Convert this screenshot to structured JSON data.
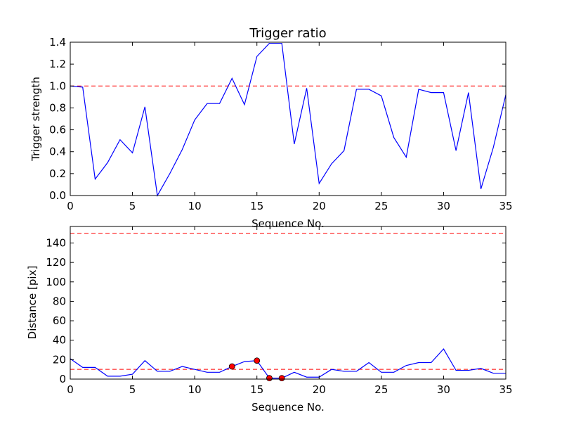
{
  "chart_data": [
    {
      "type": "line",
      "title": "Trigger ratio",
      "xlabel": "Sequence No.",
      "ylabel": "Trigger strength",
      "xlim": [
        0,
        35
      ],
      "ylim": [
        0,
        1.4
      ],
      "xticks": [
        0,
        5,
        10,
        15,
        20,
        25,
        30,
        35
      ],
      "yticks": [
        "0.0",
        "0.2",
        "0.4",
        "0.6",
        "0.8",
        "1.0",
        "1.2",
        "1.4"
      ],
      "grid": false,
      "colors": {
        "series": "#0000ff",
        "reference": "#ff0000"
      },
      "reference_lines": [
        1.0
      ],
      "series": [
        {
          "x": [
            0,
            1,
            2,
            3,
            4,
            5,
            6,
            7,
            8,
            9,
            10,
            11,
            12,
            13,
            14,
            15,
            16,
            17,
            18,
            19,
            20,
            21,
            22,
            23,
            24,
            25,
            26,
            27,
            28,
            29,
            30,
            31,
            32,
            33,
            34,
            35
          ],
          "values": [
            1.0,
            0.99,
            0.15,
            0.3,
            0.51,
            0.39,
            0.81,
            0.0,
            0.2,
            0.42,
            0.69,
            0.84,
            0.84,
            1.07,
            0.83,
            1.27,
            1.39,
            1.39,
            0.47,
            0.98,
            0.11,
            0.29,
            0.41,
            0.97,
            0.97,
            0.91,
            0.53,
            0.35,
            0.97,
            0.94,
            0.94,
            0.41,
            0.94,
            0.06,
            0.44,
            0.92
          ]
        }
      ]
    },
    {
      "type": "line",
      "title": "",
      "xlabel": "Sequence No.",
      "ylabel": "Distance [pix]",
      "xlim": [
        0,
        35
      ],
      "ylim": [
        0,
        157
      ],
      "xticks": [
        0,
        5,
        10,
        15,
        20,
        25,
        30,
        35
      ],
      "yticks": [
        "0",
        "20",
        "40",
        "60",
        "80",
        "100",
        "120",
        "140"
      ],
      "grid": false,
      "colors": {
        "series": "#0000ff",
        "reference": "#ff0000",
        "marker": "#ff0000"
      },
      "reference_lines": [
        10,
        150
      ],
      "series": [
        {
          "x": [
            0,
            1,
            2,
            3,
            4,
            5,
            6,
            7,
            8,
            9,
            10,
            11,
            12,
            13,
            14,
            15,
            16,
            17,
            18,
            19,
            20,
            21,
            22,
            23,
            24,
            25,
            26,
            27,
            28,
            29,
            30,
            31,
            32,
            33,
            34,
            35
          ],
          "values": [
            21,
            12,
            12,
            3,
            3,
            5,
            19,
            8,
            8,
            13,
            10,
            7,
            7,
            13,
            18,
            19,
            1,
            1,
            7,
            2,
            2,
            10,
            8,
            8,
            17,
            7,
            7,
            14,
            17,
            17,
            31,
            9,
            9,
            11,
            6,
            6
          ]
        }
      ],
      "markers": {
        "x": [
          13,
          15,
          16,
          17
        ],
        "values": [
          13,
          19,
          1,
          1
        ]
      }
    }
  ]
}
